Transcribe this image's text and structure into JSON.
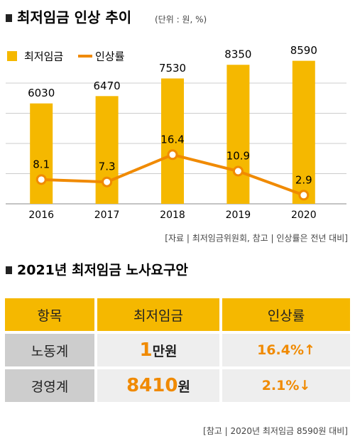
{
  "chart_data": {
    "type": "bar",
    "title": "최저임금 인상 추이",
    "unit_note": "(단위 : 원, %)",
    "categories": [
      "2016",
      "2017",
      "2018",
      "2019",
      "2020"
    ],
    "series": [
      {
        "name": "최저임금",
        "type": "bar",
        "color": "#f5b800",
        "values": [
          6030,
          6470,
          7530,
          8350,
          8590
        ]
      },
      {
        "name": "인상률",
        "type": "line",
        "axis": "y2",
        "color": "#f08a00",
        "values": [
          8.1,
          7.3,
          16.4,
          10.9,
          2.9
        ]
      }
    ],
    "ylim": [
      0,
      9000
    ],
    "y2lim": [
      0,
      50
    ],
    "grid": true,
    "source": "[자료 | 최저임금위원회, 참고 | 인상률은 전년 대비]"
  },
  "table": {
    "title": "2021년 최저임금 노사요구안",
    "header": [
      "항목",
      "최저임금",
      "인상률"
    ],
    "rows": [
      {
        "label": "노동계",
        "wage": "1",
        "wage_unit": "만원",
        "rate": "16.4%↑"
      },
      {
        "label": "경영계",
        "wage": "8410",
        "wage_unit": "원",
        "rate": "2.1%↓"
      }
    ],
    "note": "[참고 | 2020년 최저임금 8590원 대비]"
  }
}
